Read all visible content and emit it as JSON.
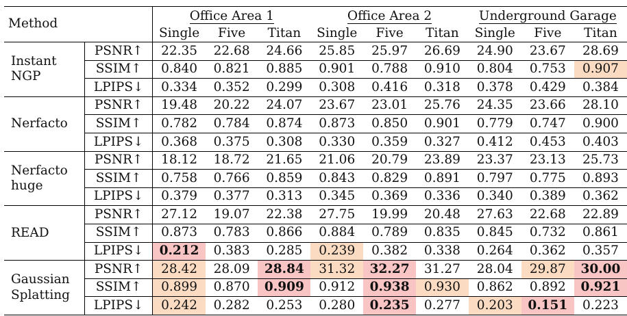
{
  "header": {
    "method_label": "Method",
    "datasets": [
      "Office Area 1",
      "Office Area 2",
      "Underground Garage"
    ],
    "sub_columns": [
      "Single",
      "Five",
      "Titan",
      "Single",
      "Five",
      "Titan",
      "Single",
      "Five",
      "Titan"
    ]
  },
  "colors": {
    "best": "#f8c4c4",
    "second": "#fbdcc3"
  },
  "groups": [
    {
      "name_lines": [
        "Instant",
        "NGP"
      ],
      "rows": [
        {
          "metric": "PSNR↑",
          "values": [
            "22.35",
            "22.68",
            "24.66",
            "25.85",
            "25.97",
            "26.69",
            "24.90",
            "23.67",
            "28.69"
          ],
          "hl": [
            0,
            0,
            0,
            0,
            0,
            0,
            0,
            0,
            0
          ]
        },
        {
          "metric": "SSIM↑",
          "values": [
            "0.840",
            "0.821",
            "0.885",
            "0.901",
            "0.788",
            "0.910",
            "0.804",
            "0.753",
            "0.907"
          ],
          "hl": [
            0,
            0,
            0,
            0,
            0,
            0,
            0,
            0,
            2
          ]
        },
        {
          "metric": "LPIPS↓",
          "values": [
            "0.334",
            "0.352",
            "0.299",
            "0.308",
            "0.416",
            "0.318",
            "0.378",
            "0.429",
            "0.384"
          ],
          "hl": [
            0,
            0,
            0,
            0,
            0,
            0,
            0,
            0,
            0
          ]
        }
      ]
    },
    {
      "name_lines": [
        "Nerfacto"
      ],
      "rows": [
        {
          "metric": "PSNR↑",
          "values": [
            "19.48",
            "20.22",
            "24.07",
            "23.67",
            "23.01",
            "25.76",
            "24.35",
            "23.66",
            "28.10"
          ],
          "hl": [
            0,
            0,
            0,
            0,
            0,
            0,
            0,
            0,
            0
          ]
        },
        {
          "metric": "SSIM↑",
          "values": [
            "0.782",
            "0.784",
            "0.874",
            "0.873",
            "0.850",
            "0.901",
            "0.779",
            "0.747",
            "0.900"
          ],
          "hl": [
            0,
            0,
            0,
            0,
            0,
            0,
            0,
            0,
            0
          ]
        },
        {
          "metric": "LPIPS↓",
          "values": [
            "0.368",
            "0.375",
            "0.308",
            "0.330",
            "0.359",
            "0.327",
            "0.412",
            "0.453",
            "0.403"
          ],
          "hl": [
            0,
            0,
            0,
            0,
            0,
            0,
            0,
            0,
            0
          ]
        }
      ]
    },
    {
      "name_lines": [
        "Nerfacto",
        "huge"
      ],
      "rows": [
        {
          "metric": "PSNR↑",
          "values": [
            "18.12",
            "18.72",
            "21.65",
            "21.06",
            "20.79",
            "23.89",
            "23.37",
            "23.13",
            "25.73"
          ],
          "hl": [
            0,
            0,
            0,
            0,
            0,
            0,
            0,
            0,
            0
          ]
        },
        {
          "metric": "SSIM↑",
          "values": [
            "0.758",
            "0.766",
            "0.859",
            "0.843",
            "0.829",
            "0.891",
            "0.797",
            "0.775",
            "0.893"
          ],
          "hl": [
            0,
            0,
            0,
            0,
            0,
            0,
            0,
            0,
            0
          ]
        },
        {
          "metric": "LPIPS↓",
          "values": [
            "0.379",
            "0.377",
            "0.313",
            "0.345",
            "0.369",
            "0.336",
            "0.340",
            "0.389",
            "0.362"
          ],
          "hl": [
            0,
            0,
            0,
            0,
            0,
            0,
            0,
            0,
            0
          ]
        }
      ]
    },
    {
      "name_lines": [
        "READ"
      ],
      "rows": [
        {
          "metric": "PSNR↑",
          "values": [
            "27.12",
            "19.07",
            "22.38",
            "27.75",
            "19.99",
            "20.48",
            "27.63",
            "22.68",
            "22.89"
          ],
          "hl": [
            0,
            0,
            0,
            0,
            0,
            0,
            0,
            0,
            0
          ]
        },
        {
          "metric": "SSIM↑",
          "values": [
            "0.873",
            "0.783",
            "0.866",
            "0.884",
            "0.789",
            "0.835",
            "0.845",
            "0.732",
            "0.861"
          ],
          "hl": [
            0,
            0,
            0,
            0,
            0,
            0,
            0,
            0,
            0
          ]
        },
        {
          "metric": "LPIPS↓",
          "values": [
            "0.212",
            "0.383",
            "0.285",
            "0.239",
            "0.382",
            "0.338",
            "0.264",
            "0.362",
            "0.357"
          ],
          "hl": [
            1,
            0,
            0,
            2,
            0,
            0,
            0,
            0,
            0
          ]
        }
      ]
    },
    {
      "name_lines": [
        "Gaussian",
        "Splatting"
      ],
      "rows": [
        {
          "metric": "PSNR↑",
          "values": [
            "28.42",
            "28.09",
            "28.84",
            "31.32",
            "32.27",
            "31.27",
            "28.04",
            "29.87",
            "30.00"
          ],
          "hl": [
            2,
            0,
            1,
            2,
            1,
            0,
            0,
            2,
            1
          ]
        },
        {
          "metric": "SSIM↑",
          "values": [
            "0.899",
            "0.870",
            "0.909",
            "0.912",
            "0.938",
            "0.930",
            "0.862",
            "0.892",
            "0.921"
          ],
          "hl": [
            2,
            0,
            1,
            0,
            1,
            2,
            0,
            0,
            1
          ]
        },
        {
          "metric": "LPIPS↓",
          "values": [
            "0.242",
            "0.282",
            "0.253",
            "0.280",
            "0.235",
            "0.277",
            "0.203",
            "0.151",
            "0.223"
          ],
          "hl": [
            2,
            0,
            0,
            0,
            1,
            0,
            2,
            1,
            0
          ]
        }
      ]
    }
  ]
}
